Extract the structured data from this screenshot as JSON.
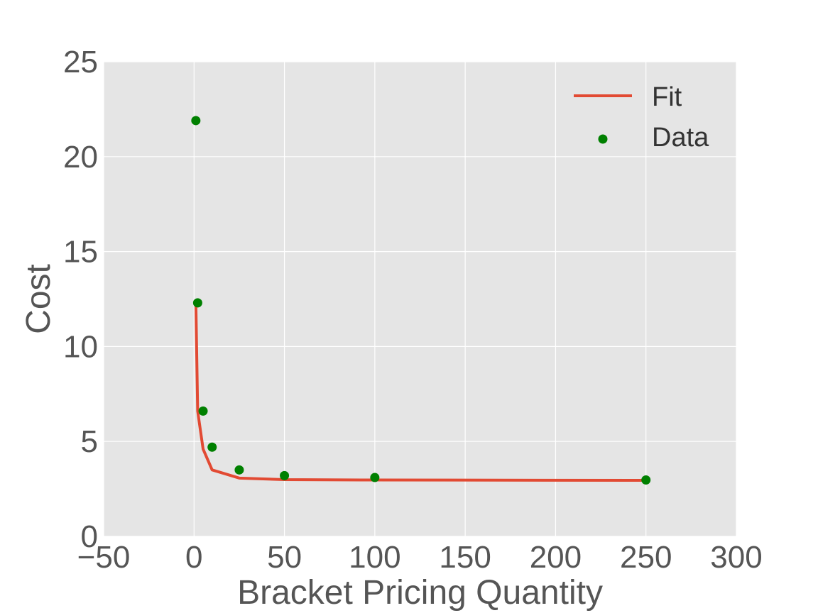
{
  "chart_data": {
    "type": "scatter",
    "xlabel": "Bracket Pricing Quantity",
    "ylabel": "Cost",
    "xlim": [
      -50,
      300
    ],
    "ylim": [
      0,
      25
    ],
    "xticks": [
      -50,
      0,
      50,
      100,
      150,
      200,
      250,
      300
    ],
    "yticks": [
      0,
      5,
      10,
      15,
      20,
      25
    ],
    "xtick_labels": [
      "−50",
      "0",
      "50",
      "100",
      "150",
      "200",
      "250",
      "300"
    ],
    "ytick_labels": [
      "0",
      "5",
      "10",
      "15",
      "20",
      "25"
    ],
    "grid": true,
    "legend_position": "top-right",
    "series": [
      {
        "name": "Fit",
        "kind": "line",
        "color": "#E24A33",
        "x": [
          1,
          2,
          5,
          10,
          25,
          50,
          100,
          250
        ],
        "y": [
          12.3,
          6.6,
          4.6,
          3.5,
          3.07,
          2.99,
          2.97,
          2.95
        ]
      },
      {
        "name": "Data",
        "kind": "scatter",
        "color": "#008000",
        "x": [
          1,
          2,
          5,
          10,
          25,
          50,
          100,
          250
        ],
        "y": [
          21.9,
          12.3,
          6.6,
          4.7,
          3.5,
          3.2,
          3.1,
          2.97
        ]
      }
    ]
  }
}
